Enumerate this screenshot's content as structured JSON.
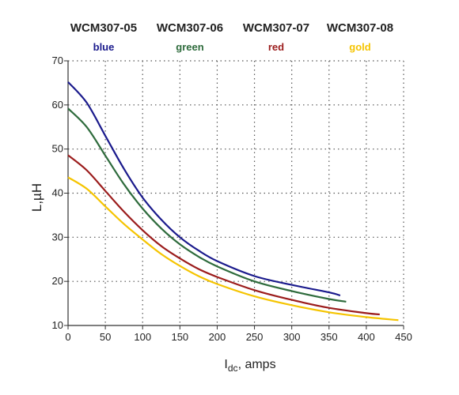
{
  "chart_data": {
    "type": "line",
    "title": "",
    "xlabel_main": "I",
    "xlabel_sub": "dc",
    "xlabel_rest": ", amps",
    "ylabel": "L,µH",
    "xlim": [
      0,
      450
    ],
    "ylim": [
      10,
      70
    ],
    "xticks": [
      0,
      50,
      100,
      150,
      200,
      250,
      300,
      350,
      400,
      450
    ],
    "yticks": [
      10,
      20,
      30,
      40,
      50,
      60,
      70
    ],
    "grid": true,
    "legend_placement": "top",
    "series": [
      {
        "name": "WCM307-05",
        "color_label": "blue",
        "color": "#1a1a8c",
        "points": [
          [
            0,
            65.2
          ],
          [
            25,
            60.5
          ],
          [
            50,
            53
          ],
          [
            75,
            45.5
          ],
          [
            100,
            39
          ],
          [
            125,
            34
          ],
          [
            150,
            30
          ],
          [
            175,
            27
          ],
          [
            200,
            24.6
          ],
          [
            250,
            21.2
          ],
          [
            300,
            19.2
          ],
          [
            350,
            17.5
          ],
          [
            365,
            16.8
          ]
        ]
      },
      {
        "name": "WCM307-06",
        "color_label": "green",
        "color": "#2e6b3c",
        "points": [
          [
            0,
            59.2
          ],
          [
            25,
            55
          ],
          [
            50,
            48.5
          ],
          [
            75,
            42
          ],
          [
            100,
            36.5
          ],
          [
            125,
            32
          ],
          [
            150,
            28.4
          ],
          [
            175,
            25.6
          ],
          [
            200,
            23.4
          ],
          [
            250,
            20
          ],
          [
            300,
            17.8
          ],
          [
            350,
            16
          ],
          [
            373,
            15.4
          ]
        ]
      },
      {
        "name": "WCM307-07",
        "color_label": "red",
        "color": "#9b1c1c",
        "points": [
          [
            0,
            48.6
          ],
          [
            25,
            45.2
          ],
          [
            50,
            40.5
          ],
          [
            75,
            35.8
          ],
          [
            100,
            31.6
          ],
          [
            125,
            28
          ],
          [
            150,
            25.2
          ],
          [
            175,
            22.8
          ],
          [
            200,
            21
          ],
          [
            250,
            18
          ],
          [
            300,
            15.8
          ],
          [
            350,
            14
          ],
          [
            400,
            12.8
          ],
          [
            418,
            12.5
          ]
        ]
      },
      {
        "name": "WCM307-08",
        "color_label": "gold",
        "color": "#f5c400",
        "points": [
          [
            0,
            43.6
          ],
          [
            25,
            41
          ],
          [
            50,
            37
          ],
          [
            75,
            33
          ],
          [
            100,
            29.5
          ],
          [
            125,
            26.2
          ],
          [
            150,
            23.5
          ],
          [
            175,
            21.2
          ],
          [
            200,
            19.4
          ],
          [
            250,
            16.6
          ],
          [
            300,
            14.6
          ],
          [
            350,
            13
          ],
          [
            400,
            11.9
          ],
          [
            443,
            11.2
          ]
        ]
      }
    ]
  }
}
